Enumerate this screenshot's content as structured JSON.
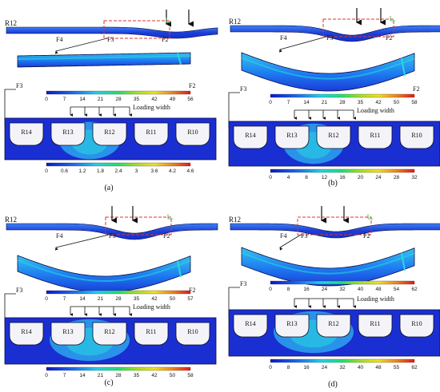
{
  "panels": [
    {
      "caption": "(a)",
      "top_labels": {
        "r12": "R12",
        "f4": "F4",
        "f3": "F3",
        "f2": "F2"
      },
      "mid_labels": {
        "f3": "F3",
        "f2": "F2"
      },
      "scale1": [
        "0",
        "7",
        "14",
        "21",
        "28",
        "35",
        "42",
        "49",
        "56"
      ],
      "loading_width": "Loading width",
      "ribs": [
        "R14",
        "R13",
        "R12",
        "R11",
        "R10"
      ],
      "scale2": [
        "0",
        "0.6",
        "1.2",
        "1.8",
        "2.4",
        "3",
        "3.6",
        "4.2",
        "4.6"
      ]
    },
    {
      "caption": "(b)",
      "top_labels": {
        "r12": "R12",
        "f4": "F4",
        "f3": "F3",
        "f2": "F2"
      },
      "mid_labels": {
        "f3": "F3",
        "f2": "F2"
      },
      "scale1": [
        "0",
        "7",
        "14",
        "21",
        "28",
        "35",
        "42",
        "50",
        "58"
      ],
      "loading_width": "Loading width",
      "ribs": [
        "R14",
        "R13",
        "R12",
        "R11",
        "R10"
      ],
      "scale2": [
        "0",
        "4",
        "8",
        "12",
        "16",
        "20",
        "24",
        "28",
        "32"
      ]
    },
    {
      "caption": "(c)",
      "top_labels": {
        "r12": "R12",
        "f4": "F4",
        "f3": "F3",
        "f2": "F2"
      },
      "mid_labels": {
        "f3": "F3",
        "f2": "F2"
      },
      "scale1": [
        "0",
        "7",
        "14",
        "21",
        "28",
        "35",
        "42",
        "50",
        "57"
      ],
      "loading_width": "Loading width",
      "ribs": [
        "R14",
        "R13",
        "R12",
        "R11",
        "R10"
      ],
      "scale2": [
        "0",
        "7",
        "14",
        "21",
        "28",
        "35",
        "42",
        "50",
        "58"
      ]
    },
    {
      "caption": "(d)",
      "top_labels": {
        "r12": "R12",
        "f4": "F4",
        "f3": "F3'",
        "f2": "F2"
      },
      "mid_labels": {
        "f3": "F3",
        "f2": ""
      },
      "scale1": [
        "0",
        "8",
        "16",
        "24",
        "32",
        "40",
        "48",
        "54",
        "62"
      ],
      "loading_width": "Loading width",
      "ribs": [
        "R14",
        "R13",
        "R12",
        "R11",
        "R10"
      ],
      "scale2": [
        "0",
        "8",
        "16",
        "24",
        "32",
        "40",
        "48",
        "55",
        "62"
      ]
    }
  ],
  "colors": {
    "deep_blue": "#1b2fd6",
    "mid_blue": "#1e6cf0",
    "light_blue": "#2fb5f0",
    "cyan": "#27d8e0",
    "frame_red": "#e03030",
    "outline": "#0a0a44"
  }
}
